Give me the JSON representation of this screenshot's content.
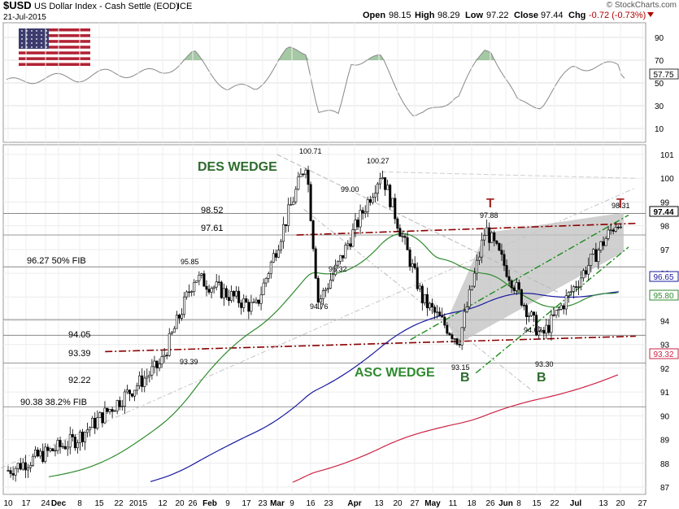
{
  "header": {
    "symbol": "$USD",
    "name": "US Dollar Index - Cash Settle (EOD)",
    "exchange": "ICE",
    "date": "21-Jul-2015",
    "watermark": "© StockCharts.com",
    "ohlc": {
      "open_label": "Open",
      "open": "98.15",
      "high_label": "High",
      "high": "98.29",
      "low_label": "Low",
      "low": "97.22",
      "close_label": "Close",
      "close": "97.44",
      "chg_label": "Chg",
      "chg": "-0.72 (-0.73%)"
    }
  },
  "colors": {
    "up_candle": "#ffffff",
    "down_candle": "#000000",
    "ma_green": "#2e8b2e",
    "ma_blue": "#1a1aa0",
    "ma_red": "#cc2244",
    "resistance": "#8b0000",
    "wedge_green": "#1e8c1e",
    "fill": "#c8c8c8",
    "text_green": "#2e6b2e",
    "t_marker": "#a52a2a",
    "rsi_fill": "#7fb07f"
  },
  "rsi_panel": {
    "ticks": [
      "90",
      "70",
      "50",
      "30",
      "10"
    ],
    "last_value": "57.75"
  },
  "price_panel": {
    "y_ticks": [
      "101",
      "100",
      "99",
      "98",
      "97",
      "96",
      "95",
      "94",
      "93",
      "92",
      "91",
      "90",
      "89",
      "88",
      "87"
    ],
    "last_price": "97.44",
    "blue_ma_value": "96.65",
    "green_ma_value": "95.80",
    "red_ma_value": "93.32"
  },
  "x_ticks": [
    "10",
    "17",
    "24",
    "Dec",
    "8",
    "15",
    "22",
    "2015",
    "12",
    "20",
    "26",
    "Feb",
    "9",
    "17",
    "23",
    "Mar",
    "9",
    "16",
    "23",
    "Apr",
    "13",
    "20",
    "27",
    "May",
    "11",
    "18",
    "26",
    "Jun",
    "8",
    "15",
    "22",
    "Jul",
    "13",
    "20",
    "27"
  ],
  "annotations": {
    "des_wedge": "DES WEDGE",
    "asc_wedge": "ASC WEDGE",
    "fib50": "96.27  50% FIB",
    "fib38": "90.38  38.2% FIB",
    "lvl_9852": "98.52",
    "lvl_9761": "97.61",
    "lvl_9405": "94.05",
    "lvl_9339": "93.39",
    "lvl_9222": "92.22",
    "lbl_10071": "100.71",
    "lbl_10027": "100.27",
    "lbl_9900": "99.00",
    "lbl_9585": "95.85",
    "lbl_9632": "96.32",
    "lbl_9476": "94.76",
    "lbl_9339b": "93.39",
    "lbl_9315": "93.15",
    "lbl_9788": "97.88",
    "lbl_9467": "94.67",
    "lbl_9330": "93.30",
    "lbl_9831": "98.31",
    "t1": "T",
    "t2": "T",
    "b1": "B",
    "b2": "B"
  },
  "chart_data": {
    "type": "candlestick",
    "title": "$USD US Dollar Index - Cash Settle (EOD)",
    "x_range": [
      "2014-11-07",
      "2015-07-27"
    ],
    "ylim": [
      86.5,
      101.6
    ],
    "rsi_ylim": [
      0,
      100
    ],
    "price_key_points": [
      {
        "date": "2014-11-10",
        "value": 87.7
      },
      {
        "date": "2014-12-08",
        "value": 89.0
      },
      {
        "date": "2015-01-12",
        "value": 92.2
      },
      {
        "date": "2015-01-26",
        "value": 95.85
      },
      {
        "date": "2015-02-20",
        "value": 94.5
      },
      {
        "date": "2015-03-13",
        "value": 100.71
      },
      {
        "date": "2015-03-18",
        "value": 94.76
      },
      {
        "date": "2015-03-26",
        "value": 96.32
      },
      {
        "date": "2015-04-13",
        "value": 100.27
      },
      {
        "date": "2015-04-30",
        "value": 94.9
      },
      {
        "date": "2015-05-15",
        "value": 93.15
      },
      {
        "date": "2015-05-26",
        "value": 97.88
      },
      {
        "date": "2015-06-18",
        "value": 93.3
      },
      {
        "date": "2015-07-20",
        "value": 98.31
      },
      {
        "date": "2015-07-21",
        "value": 97.44
      }
    ],
    "horizontal_levels": [
      98.52,
      97.61,
      96.27,
      94.05,
      93.39,
      92.22,
      90.38
    ],
    "moving_averages": [
      {
        "color": "green",
        "last": 95.8
      },
      {
        "color": "blue",
        "last": 96.65
      },
      {
        "color": "red",
        "last": 93.32
      }
    ],
    "rsi_last": 57.75
  }
}
